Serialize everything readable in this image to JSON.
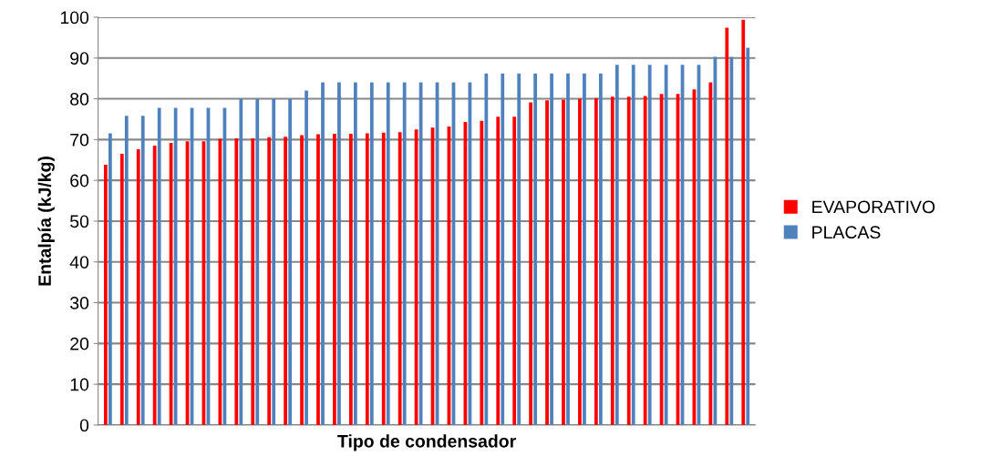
{
  "chart_data": {
    "type": "bar",
    "xlabel": "Tipo de condensador",
    "ylabel": "Entalpía (kJ/kg)",
    "categories": [
      null,
      null,
      null,
      null,
      null,
      null,
      null,
      null,
      null,
      null,
      null,
      null,
      null,
      null,
      null,
      null,
      null,
      null,
      null,
      null,
      null,
      null,
      null,
      null,
      null,
      null,
      null,
      null,
      null,
      null,
      null,
      null,
      null,
      null,
      null,
      null,
      null,
      null,
      null,
      null
    ],
    "series": [
      {
        "name": "EVAPORATIVO",
        "color": "#ff0000",
        "values": [
          63.8,
          66.5,
          67.6,
          68.5,
          69.2,
          69.6,
          69.6,
          70.2,
          70.3,
          70.3,
          70.6,
          70.7,
          71.1,
          71.3,
          71.4,
          71.4,
          71.5,
          71.7,
          71.8,
          72.5,
          72.9,
          73.2,
          74.3,
          74.6,
          75.6,
          75.6,
          79.1,
          79.6,
          79.8,
          80.0,
          80.2,
          80.5,
          80.5,
          80.7,
          81.2,
          81.2,
          82.3,
          84.0,
          97.4,
          99.4
        ]
      },
      {
        "name": "PLACAS",
        "color": "#4f81bd",
        "values": [
          71.5,
          75.8,
          75.8,
          77.8,
          77.8,
          77.8,
          77.8,
          77.8,
          80,
          80,
          80,
          80,
          82,
          84,
          84,
          84,
          84,
          84,
          84,
          84,
          84,
          84,
          84,
          86.2,
          86.2,
          86.2,
          86.2,
          86.2,
          86.2,
          86.2,
          86.2,
          88.3,
          88.3,
          88.3,
          88.3,
          88.3,
          88.3,
          90.3,
          90.3,
          92.5
        ]
      }
    ],
    "ylim": [
      0,
      100
    ],
    "yticks": [
      0,
      10,
      20,
      30,
      40,
      50,
      60,
      70,
      80,
      90,
      100
    ],
    "grid": "y",
    "legend": "right"
  }
}
